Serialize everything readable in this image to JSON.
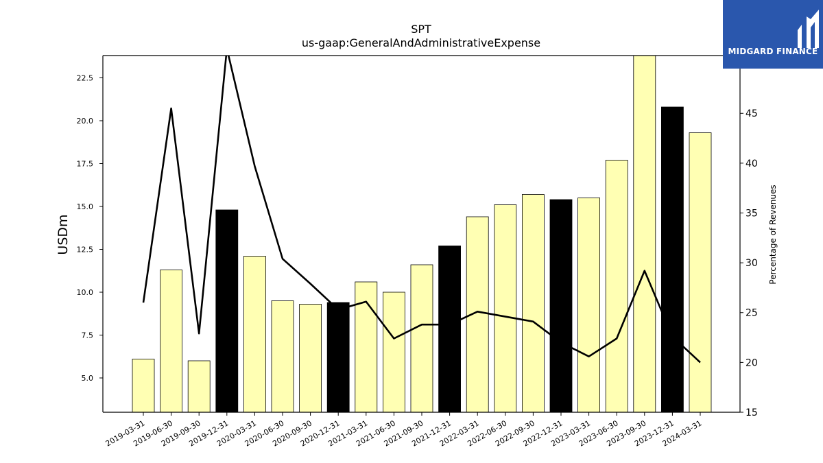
{
  "chart_data": {
    "type": "bar",
    "title": "SPT",
    "subtitle": "us-gaap:GeneralAndAdministrativeExpense",
    "ylabel": "USDm",
    "y2label": "Percentage of Revenues",
    "ylim": [
      3.0,
      23.8
    ],
    "y2lim": [
      15,
      50.8
    ],
    "yticks": [
      "5.0",
      "7.5",
      "10.0",
      "12.5",
      "15.0",
      "17.5",
      "20.0",
      "22.5"
    ],
    "y2ticks": [
      "15",
      "20",
      "25",
      "30",
      "35",
      "40",
      "45"
    ],
    "categories": [
      "2019-03-31",
      "2019-06-30",
      "2019-09-30",
      "2019-12-31",
      "2020-03-31",
      "2020-06-30",
      "2020-09-30",
      "2020-12-31",
      "2021-03-31",
      "2021-06-30",
      "2021-09-30",
      "2021-12-31",
      "2022-03-31",
      "2022-06-30",
      "2022-09-30",
      "2022-12-31",
      "2023-03-31",
      "2023-06-30",
      "2023-09-30",
      "2023-12-31",
      "2024-03-31"
    ],
    "series": [
      {
        "type": "bar",
        "axis": "left",
        "values": [
          6.1,
          11.3,
          6.0,
          14.8,
          12.1,
          9.5,
          9.3,
          9.4,
          10.6,
          10.0,
          11.6,
          12.7,
          14.4,
          15.1,
          15.7,
          15.4,
          15.5,
          17.7,
          23.8,
          20.8,
          19.3
        ],
        "colors": [
          "#ffffb3",
          "#ffffb3",
          "#ffffb3",
          "#000000",
          "#ffffb3",
          "#ffffb3",
          "#ffffb3",
          "#000000",
          "#ffffb3",
          "#ffffb3",
          "#ffffb3",
          "#000000",
          "#ffffb3",
          "#ffffb3",
          "#ffffb3",
          "#000000",
          "#ffffb3",
          "#ffffb3",
          "#ffffb3",
          "#000000",
          "#ffffb3"
        ]
      },
      {
        "type": "line",
        "axis": "right",
        "color": "#000000",
        "values": [
          26.0,
          45.5,
          22.9,
          51.5,
          39.7,
          30.4,
          27.9,
          25.3,
          26.1,
          22.4,
          23.8,
          23.8,
          25.1,
          24.6,
          24.1,
          22.0,
          20.6,
          22.4,
          29.2,
          22.6,
          20.0
        ]
      }
    ]
  },
  "logo": {
    "text": "MIDGARD FINANCE",
    "background": "#2a57ad"
  }
}
